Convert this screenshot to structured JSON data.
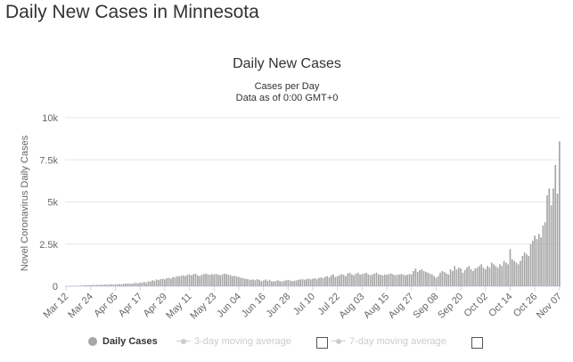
{
  "page": {
    "heading": "Daily New Cases in Minnesota"
  },
  "colors": {
    "bar": "#a6a6a6",
    "axis_text": "#666666",
    "grid": "#e6e6e6",
    "legend_inactive": "#cccccc"
  },
  "legend": {
    "daily": "Daily Cases",
    "ma3": "3-day moving average",
    "ma7": "7-day moving average"
  },
  "chart_data": {
    "type": "bar",
    "title": "Daily New Cases",
    "subtitle_lines": [
      "Cases per Day",
      "Data as of 0:00 GMT+0"
    ],
    "ylabel": "Novel Coronavirus Daily Cases",
    "xlabel": "",
    "ylim": [
      0,
      10000
    ],
    "yticks": [
      0,
      2500,
      5000,
      7500,
      10000
    ],
    "ytick_labels": [
      "0",
      "2.5k",
      "5k",
      "7.5k",
      "10k"
    ],
    "grid": true,
    "start_date": "Mar 12",
    "xtick_labels": [
      "Mar 12",
      "Mar 24",
      "Apr 05",
      "Apr 17",
      "Apr 29",
      "May 11",
      "May 23",
      "Jun 04",
      "Jun 16",
      "Jun 28",
      "Jul 10",
      "Jul 22",
      "Aug 03",
      "Aug 15",
      "Aug 27",
      "Sep 08",
      "Sep 20",
      "Oct 02",
      "Oct 14",
      "Oct 26",
      "Nov 07"
    ],
    "series": [
      {
        "name": "Daily Cases",
        "values": [
          5,
          3,
          10,
          15,
          20,
          25,
          30,
          40,
          35,
          55,
          50,
          60,
          65,
          70,
          75,
          80,
          65,
          90,
          85,
          95,
          90,
          100,
          110,
          90,
          120,
          100,
          130,
          110,
          140,
          150,
          150,
          160,
          140,
          180,
          200,
          170,
          210,
          220,
          250,
          200,
          300,
          280,
          350,
          320,
          400,
          360,
          420,
          450,
          400,
          480,
          500,
          450,
          550,
          520,
          600,
          580,
          620,
          650,
          600,
          680,
          700,
          650,
          720,
          740,
          650,
          600,
          680,
          720,
          750,
          700,
          680,
          720,
          700,
          740,
          680,
          650,
          700,
          750,
          720,
          680,
          650,
          600,
          620,
          580,
          550,
          500,
          480,
          450,
          420,
          400,
          380,
          400,
          350,
          420,
          380,
          300,
          350,
          400,
          320,
          380,
          300,
          280,
          320,
          350,
          300,
          280,
          320,
          350,
          380,
          340,
          300,
          320,
          350,
          380,
          400,
          420,
          380,
          420,
          450,
          400,
          450,
          480,
          420,
          500,
          520,
          480,
          550,
          600,
          520,
          650,
          700,
          550,
          600,
          650,
          720,
          680,
          600,
          750,
          800,
          700,
          650,
          750,
          800,
          700,
          720,
          750,
          800,
          700,
          650,
          700,
          750,
          800,
          700,
          680,
          650,
          700,
          680,
          720,
          750,
          700,
          650,
          680,
          700,
          720,
          700,
          650,
          680,
          720,
          700,
          900,
          1050,
          850,
          950,
          1000,
          900,
          850,
          800,
          750,
          700,
          600,
          500,
          600,
          800,
          900,
          850,
          750,
          700,
          1000,
          900,
          1200,
          1000,
          1100,
          1050,
          800,
          950,
          1100,
          1200,
          1000,
          900,
          1050,
          1100,
          1200,
          1300,
          1100,
          1000,
          1200,
          1100,
          1400,
          1300,
          1200,
          1100,
          1300,
          1200,
          1500,
          1400,
          1300,
          2200,
          1600,
          1500,
          1400,
          1300,
          1500,
          1800,
          2000,
          1900,
          1800,
          2500,
          2700,
          3000,
          2800,
          3100,
          2900,
          3600,
          3800,
          5400,
          5800,
          4800,
          5800,
          7200,
          5500,
          8600
        ]
      }
    ]
  }
}
